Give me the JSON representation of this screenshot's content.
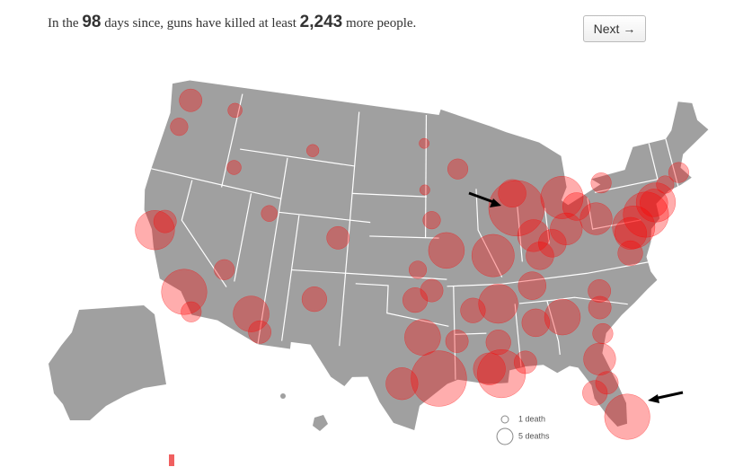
{
  "headline": {
    "prefix": "In the",
    "days": 98,
    "middle": "days since, guns have killed at least",
    "count": "2,243",
    "suffix": "more people."
  },
  "button": "Next →",
  "legend": [
    {
      "value": 1,
      "label": "1 death"
    },
    {
      "value": 5,
      "label": "5 deaths"
    }
  ],
  "markers": [
    {
      "lon": -87.6,
      "lat": 41.9,
      "deaths": 60
    },
    {
      "lon": -75.2,
      "lat": 40.0,
      "deaths": 40
    },
    {
      "lon": -76.6,
      "lat": 39.3,
      "deaths": 35
    },
    {
      "lon": -74.0,
      "lat": 40.7,
      "deaths": 30
    },
    {
      "lon": -77.0,
      "lat": 38.9,
      "deaths": 20
    },
    {
      "lon": -83.0,
      "lat": 42.3,
      "deaths": 35
    },
    {
      "lon": -81.7,
      "lat": 41.5,
      "deaths": 15
    },
    {
      "lon": -83.0,
      "lat": 40.0,
      "deaths": 20
    },
    {
      "lon": -84.5,
      "lat": 39.1,
      "deaths": 15
    },
    {
      "lon": -86.2,
      "lat": 39.8,
      "deaths": 20
    },
    {
      "lon": -90.2,
      "lat": 38.6,
      "deaths": 35
    },
    {
      "lon": -94.6,
      "lat": 39.1,
      "deaths": 25
    },
    {
      "lon": -90.0,
      "lat": 35.1,
      "deaths": 30
    },
    {
      "lon": -86.8,
      "lat": 36.2,
      "deaths": 15
    },
    {
      "lon": -84.4,
      "lat": 33.7,
      "deaths": 25
    },
    {
      "lon": -86.8,
      "lat": 33.5,
      "deaths": 15
    },
    {
      "lon": -90.1,
      "lat": 30.0,
      "deaths": 45
    },
    {
      "lon": -91.1,
      "lat": 30.4,
      "deaths": 20
    },
    {
      "lon": -90.2,
      "lat": 32.3,
      "deaths": 12
    },
    {
      "lon": -95.4,
      "lat": 29.8,
      "deaths": 60
    },
    {
      "lon": -96.8,
      "lat": 32.8,
      "deaths": 25
    },
    {
      "lon": -98.5,
      "lat": 29.4,
      "deaths": 20
    },
    {
      "lon": -97.5,
      "lat": 35.5,
      "deaths": 12
    },
    {
      "lon": -112.0,
      "lat": 33.4,
      "deaths": 25
    },
    {
      "lon": -111.0,
      "lat": 32.2,
      "deaths": 10
    },
    {
      "lon": -115.1,
      "lat": 36.2,
      "deaths": 8
    },
    {
      "lon": -118.2,
      "lat": 34.0,
      "deaths": 40
    },
    {
      "lon": -122.2,
      "lat": 37.8,
      "deaths": 30
    },
    {
      "lon": -121.5,
      "lat": 38.6,
      "deaths": 10
    },
    {
      "lon": -117.2,
      "lat": 32.7,
      "deaths": 8
    },
    {
      "lon": -122.3,
      "lat": 47.6,
      "deaths": 10
    },
    {
      "lon": -122.7,
      "lat": 45.5,
      "deaths": 6
    },
    {
      "lon": -105.0,
      "lat": 39.7,
      "deaths": 10
    },
    {
      "lon": -106.6,
      "lat": 35.1,
      "deaths": 12
    },
    {
      "lon": -80.2,
      "lat": 25.8,
      "deaths": 40
    },
    {
      "lon": -81.7,
      "lat": 30.3,
      "deaths": 20
    },
    {
      "lon": -82.5,
      "lat": 27.9,
      "deaths": 12
    },
    {
      "lon": -81.4,
      "lat": 28.5,
      "deaths": 10
    },
    {
      "lon": -80.8,
      "lat": 35.2,
      "deaths": 10
    },
    {
      "lon": -77.4,
      "lat": 37.5,
      "deaths": 12
    },
    {
      "lon": -85.8,
      "lat": 38.3,
      "deaths": 15
    },
    {
      "lon": -87.9,
      "lat": 43.0,
      "deaths": 15
    },
    {
      "lon": -93.3,
      "lat": 45.0,
      "deaths": 8
    },
    {
      "lon": -96.0,
      "lat": 41.3,
      "deaths": 6
    },
    {
      "lon": -97.3,
      "lat": 37.7,
      "deaths": 6
    },
    {
      "lon": -111.9,
      "lat": 40.8,
      "deaths": 5
    },
    {
      "lon": -116.2,
      "lat": 43.6,
      "deaths": 4
    },
    {
      "lon": -92.3,
      "lat": 34.7,
      "deaths": 12
    },
    {
      "lon": -80.0,
      "lat": 40.4,
      "deaths": 20
    },
    {
      "lon": -78.9,
      "lat": 42.9,
      "deaths": 8
    },
    {
      "lon": -71.1,
      "lat": 42.4,
      "deaths": 8
    },
    {
      "lon": -74.2,
      "lat": 40.7,
      "deaths": 15
    },
    {
      "lon": -72.7,
      "lat": 41.8,
      "deaths": 6
    },
    {
      "lon": -81.0,
      "lat": 34.0,
      "deaths": 10
    },
    {
      "lon": -81.1,
      "lat": 32.1,
      "deaths": 8
    },
    {
      "lon": -88.0,
      "lat": 30.7,
      "deaths": 10
    },
    {
      "lon": -93.8,
      "lat": 32.5,
      "deaths": 10
    },
    {
      "lon": -96.0,
      "lat": 36.2,
      "deaths": 10
    },
    {
      "lon": -117.4,
      "lat": 47.7,
      "deaths": 4
    },
    {
      "lon": -108.5,
      "lat": 45.8,
      "deaths": 3
    },
    {
      "lon": -96.8,
      "lat": 46.9,
      "deaths": 2
    },
    {
      "lon": -96.7,
      "lat": 43.5,
      "deaths": 2
    }
  ]
}
